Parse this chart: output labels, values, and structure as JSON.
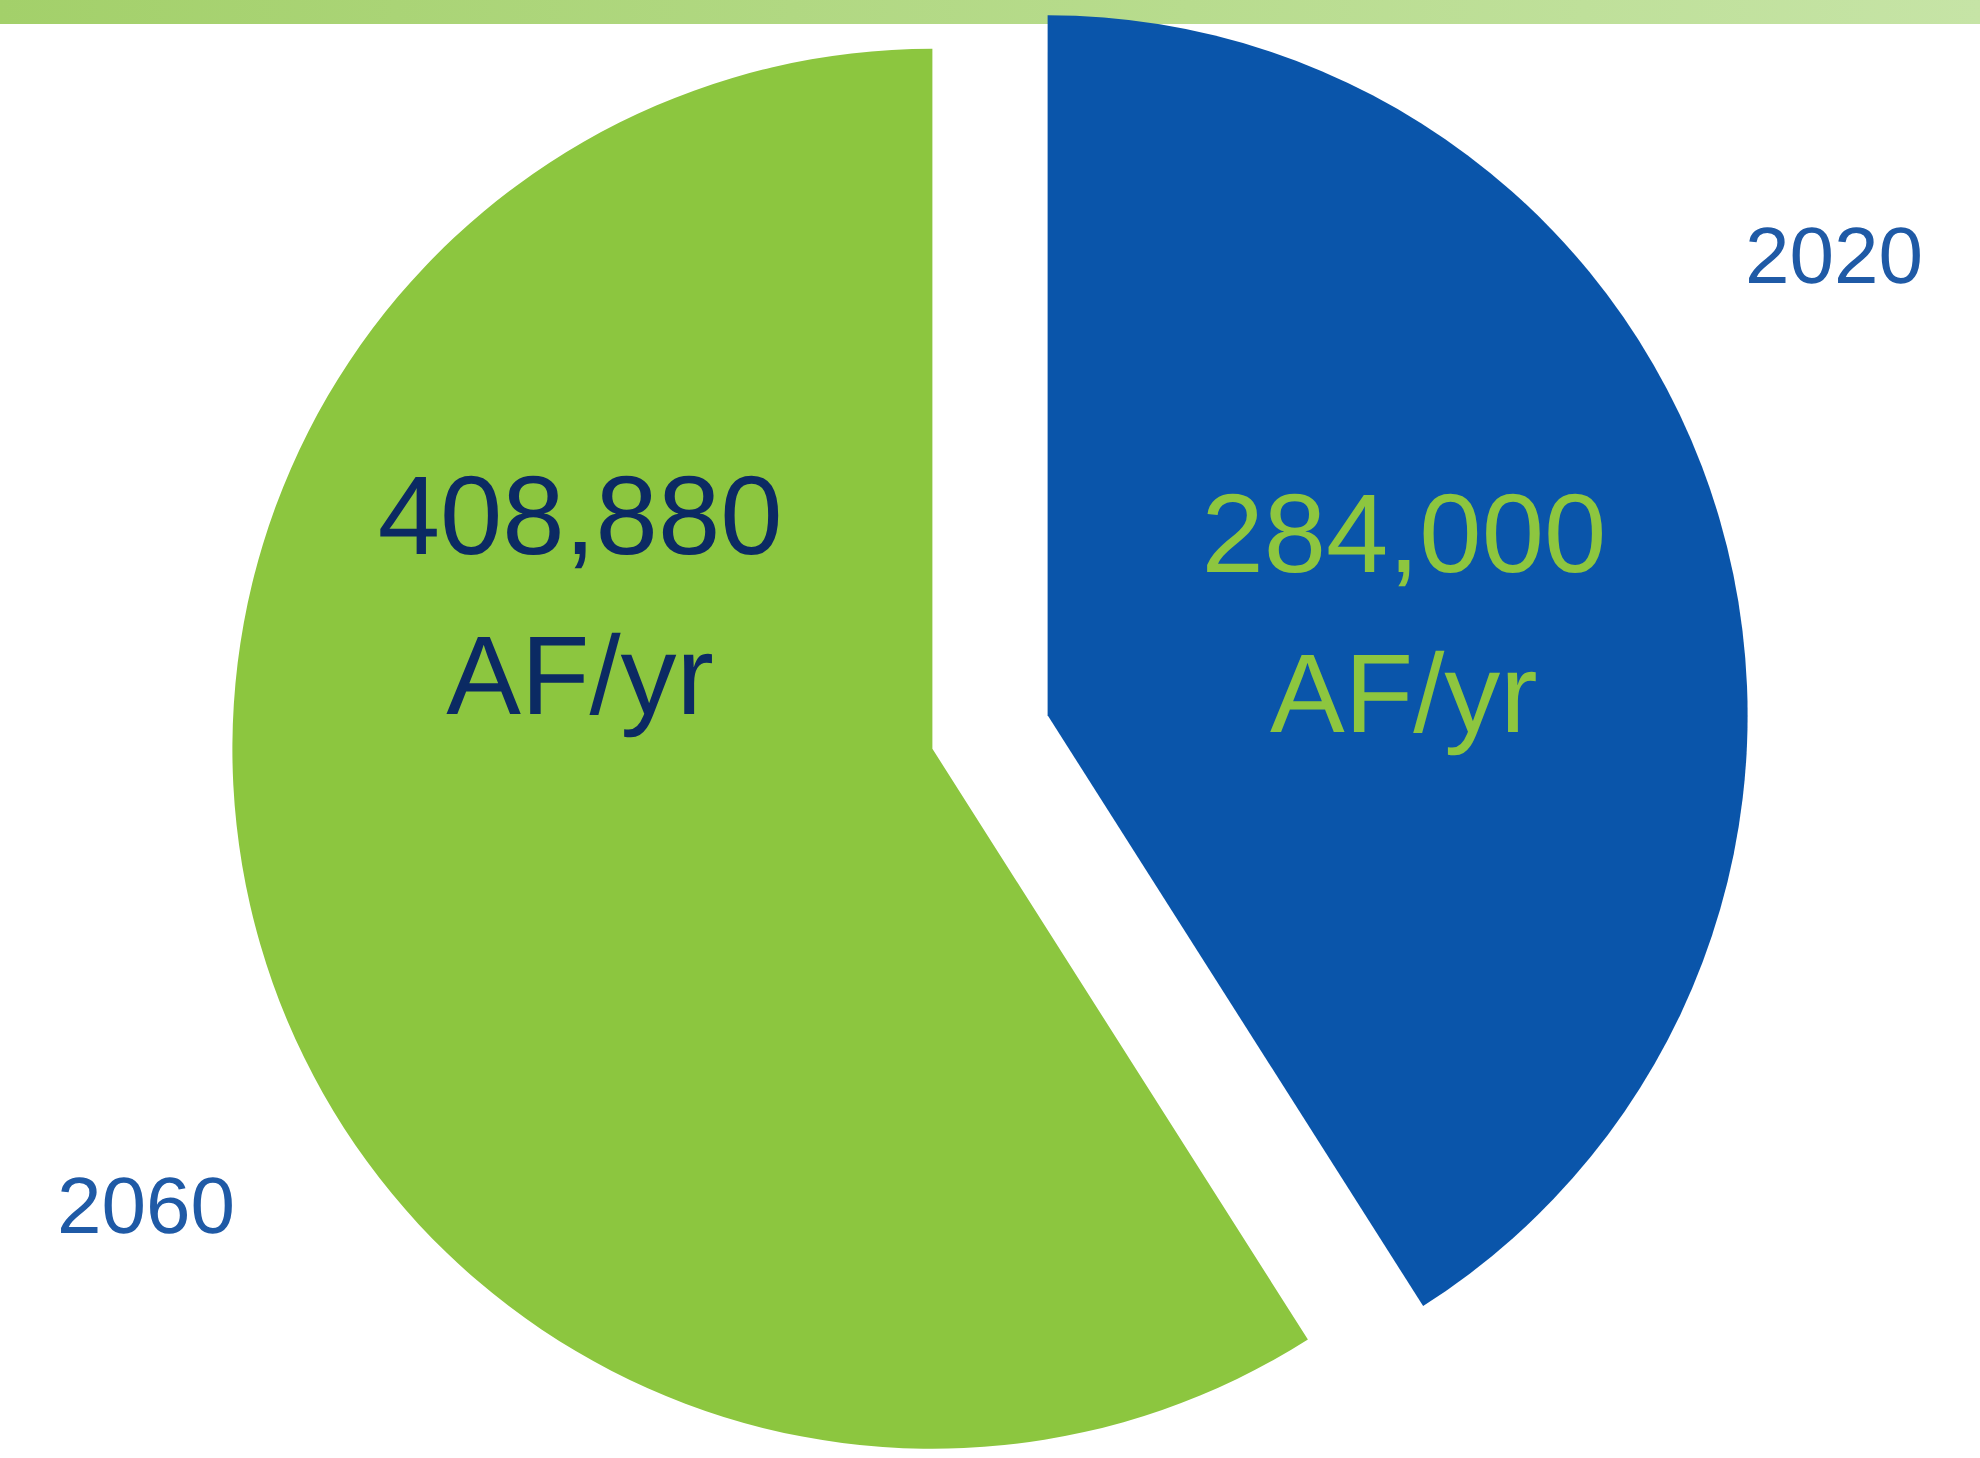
{
  "chart_data": {
    "type": "pie",
    "categories": [
      "2020",
      "2060"
    ],
    "values": [
      284000,
      408880
    ],
    "colors": [
      "#0a55aa",
      "#8cc63f"
    ],
    "value_labels": [
      "284,000 AF/yr",
      "408,880 AF/yr"
    ]
  }
}
